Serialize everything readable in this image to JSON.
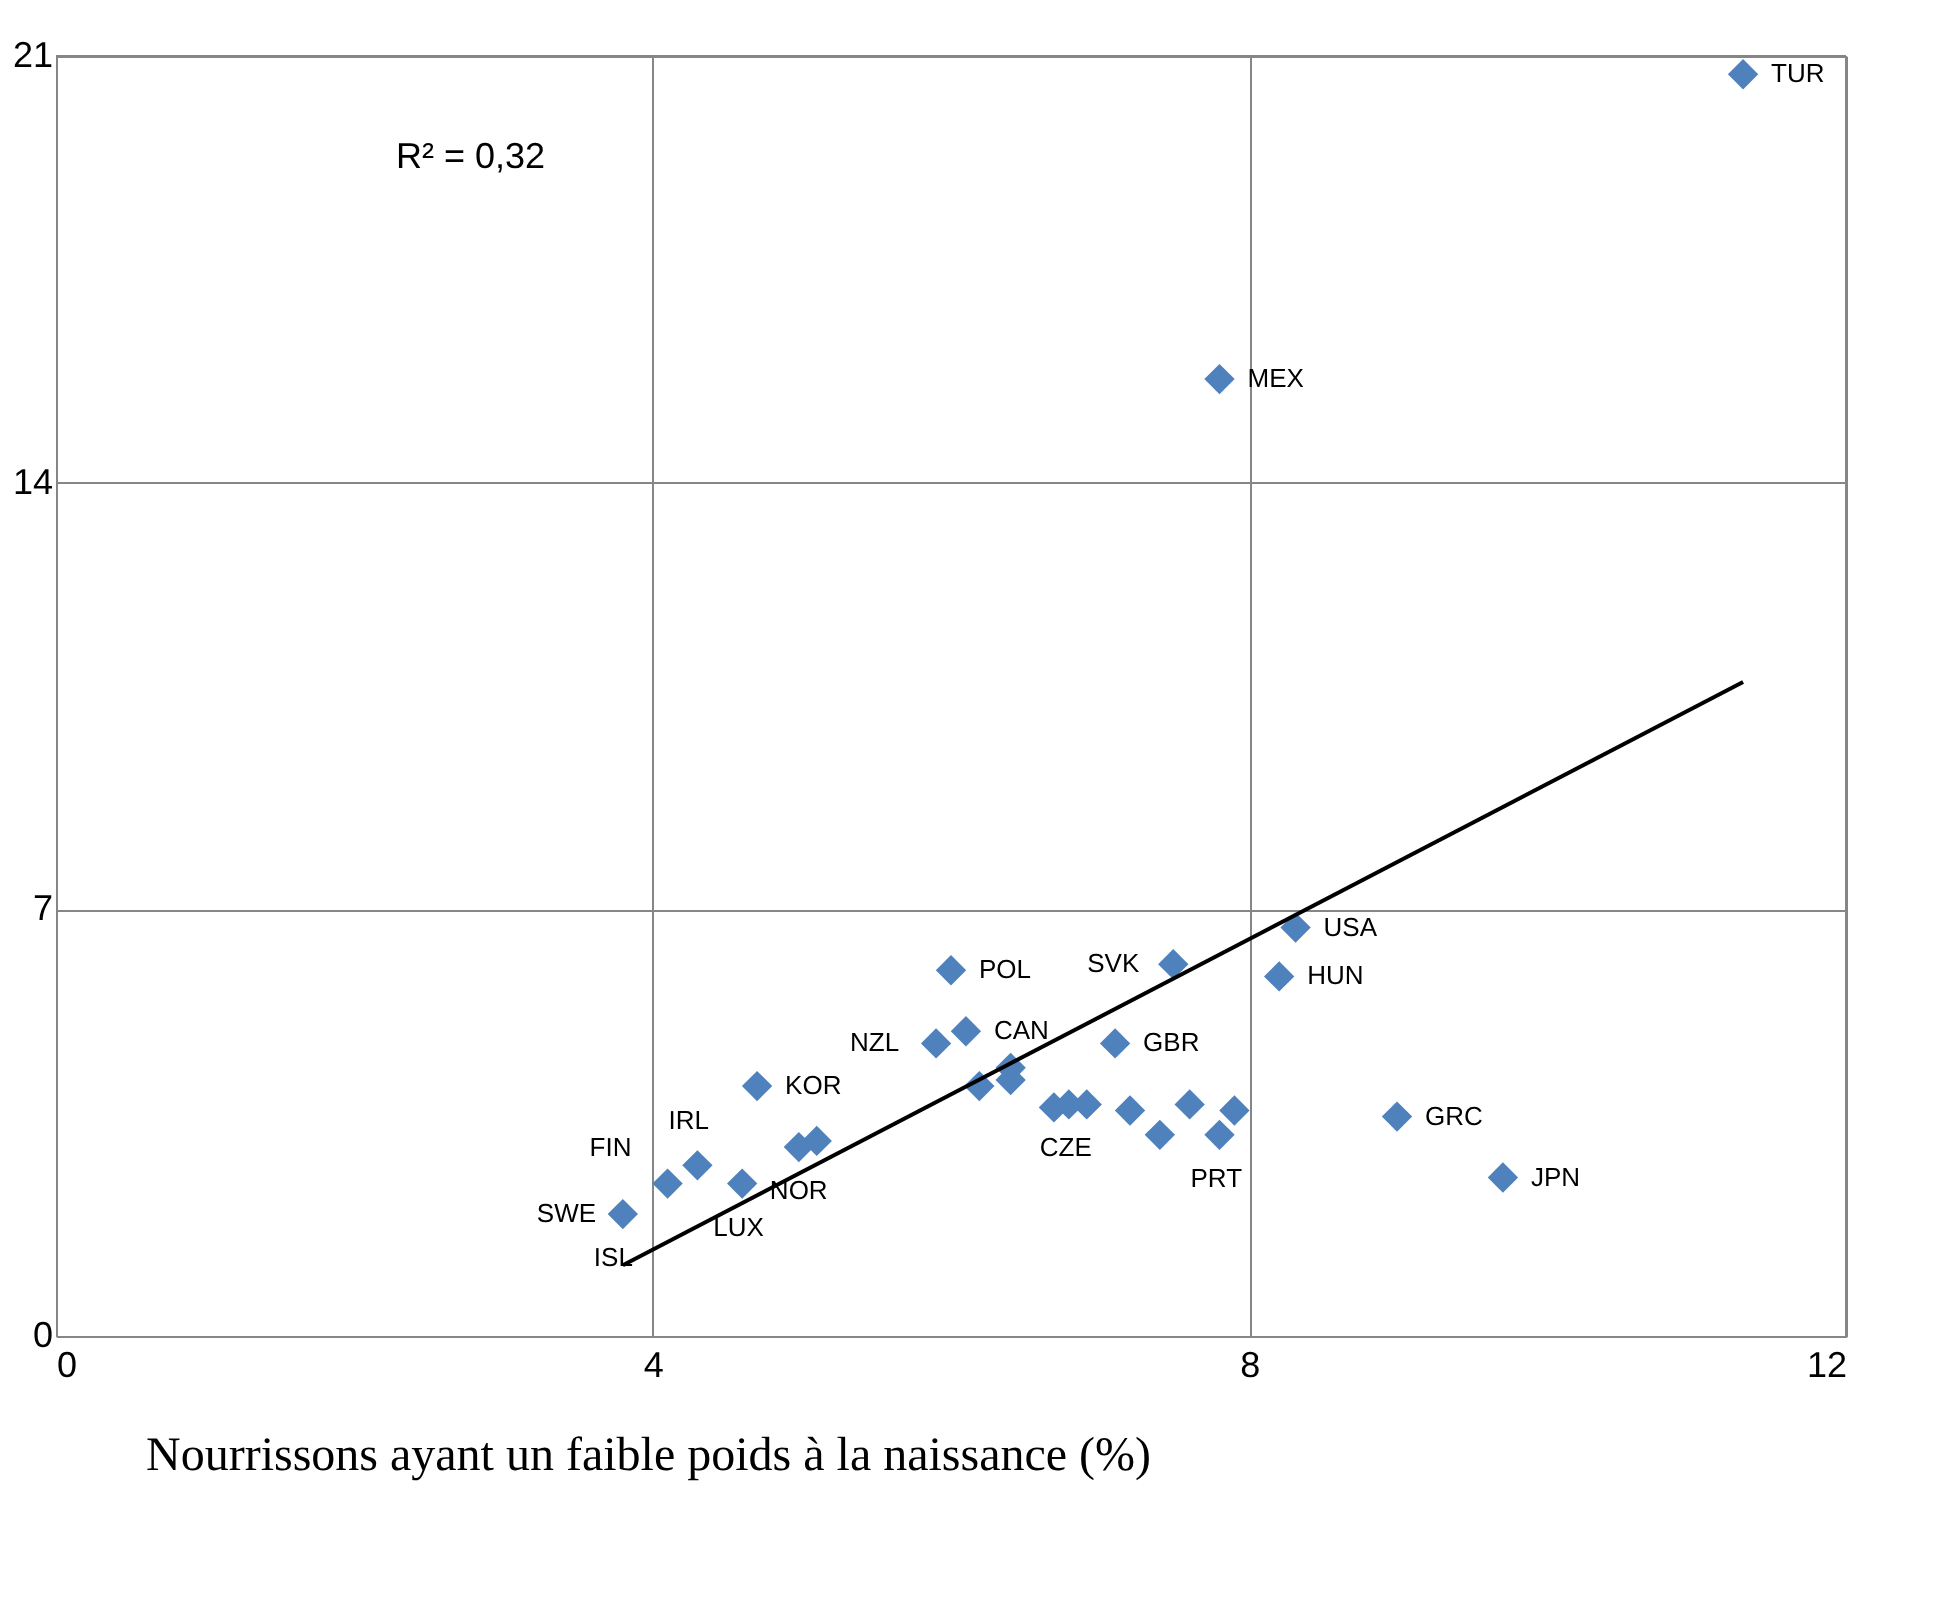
{
  "chart_data": {
    "type": "scatter",
    "xlabel": "Nourrissons ayant un faible poids à la naissance (%)",
    "xlim": [
      0,
      12
    ],
    "xticks": [
      0,
      4,
      8,
      12
    ],
    "ylim": [
      0,
      21
    ],
    "yticks": [
      0,
      7,
      14,
      21
    ],
    "grid": true,
    "series": [
      {
        "color": "#4f81bd",
        "marker": "diamond",
        "x": [
          3.8,
          4.1,
          4.3,
          4.6,
          4.7,
          4.98,
          5.1,
          6.0,
          5.9,
          6.1,
          6.19,
          6.4,
          6.4,
          6.69,
          6.79,
          6.91,
          7.2,
          7.4,
          7.6,
          7.8,
          7.9,
          7.1,
          7.49,
          8.2,
          8.31,
          8.99,
          9.7,
          7.8,
          11.31
        ],
        "values": [
          2.0,
          2.5,
          2.8,
          2.5,
          4.1,
          3.1,
          3.2,
          6.0,
          4.8,
          5.0,
          4.1,
          4.4,
          4.2,
          3.75,
          3.8,
          3.8,
          3.7,
          3.3,
          3.8,
          3.3,
          3.7,
          4.8,
          6.1,
          5.9,
          6.7,
          3.6,
          2.6,
          15.7,
          20.7
        ]
      },
      {
        "type": "line",
        "color": "#000000",
        "x": [
          3.8,
          11.31
        ],
        "values": [
          1.16,
          10.73
        ]
      }
    ],
    "annotations": [
      "R² = 0,32",
      {
        "text": "TUR",
        "x": 11.31,
        "y": 20.7
      },
      {
        "text": "MEX",
        "x": 7.8,
        "y": 15.7
      },
      {
        "text": "USA",
        "x": 8.31,
        "y": 6.7
      },
      {
        "text": "SVK",
        "x": 7.49,
        "y": 6.1
      },
      {
        "text": "POL",
        "x": 6.0,
        "y": 6.0
      },
      {
        "text": "HUN",
        "x": 8.2,
        "y": 5.9
      },
      {
        "text": "NZL",
        "x": 5.9,
        "y": 4.8
      },
      {
        "text": "CAN",
        "x": 6.1,
        "y": 5.0
      },
      {
        "text": "GBR",
        "x": 7.1,
        "y": 4.8
      },
      {
        "text": "KOR",
        "x": 4.7,
        "y": 4.1
      },
      {
        "text": "NOR",
        "x": 4.98,
        "y": 3.1
      },
      {
        "text": "IRL",
        "x": 4.3,
        "y": 2.8
      },
      {
        "text": "FIN",
        "x": 4.1,
        "y": 2.5
      },
      {
        "text": "SWE",
        "x": 3.8,
        "y": 2.0
      },
      {
        "text": "LUX",
        "x": 4.6,
        "y": 2.5
      },
      {
        "text": "ISL",
        "x": 3.8,
        "y": 2.0
      },
      {
        "text": "CZE",
        "x": 6.79,
        "y": 3.8
      },
      {
        "text": "PRT",
        "x": 7.8,
        "y": 3.3
      },
      {
        "text": "GRC",
        "x": 8.99,
        "y": 3.6
      },
      {
        "text": "JPN",
        "x": 9.7,
        "y": 2.6
      }
    ]
  }
}
